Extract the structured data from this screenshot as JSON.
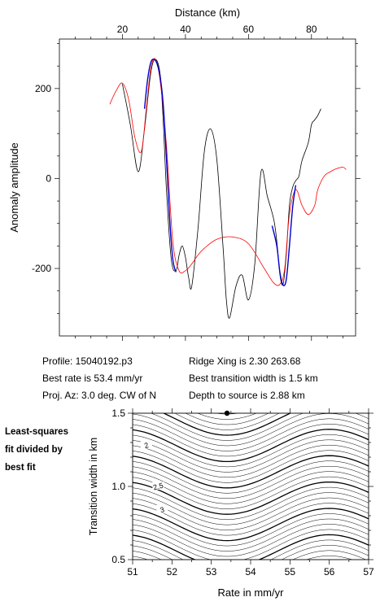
{
  "chart_data": [
    {
      "type": "line",
      "xlabel": "Distance (km)",
      "ylabel": "Anomaly amplitude",
      "xlim": [
        0,
        94
      ],
      "ylim": [
        -350,
        310
      ],
      "xticks": [
        20,
        40,
        60,
        80
      ],
      "yticks": [
        -200,
        0,
        200
      ],
      "x_axis_position": "top",
      "series": [
        {
          "color": "#000000",
          "x": [
            20,
            22.5,
            25,
            27,
            29,
            30.5,
            32,
            33,
            34,
            35.5,
            37,
            38,
            39,
            40,
            41,
            42,
            44,
            46,
            48,
            50,
            52,
            53,
            54,
            56,
            58,
            60,
            62,
            64,
            66,
            68,
            69,
            70,
            71,
            72,
            73,
            74,
            75,
            76,
            77,
            79,
            80,
            81,
            82,
            83
          ],
          "y": [
            210,
            120,
            15,
            110,
            235,
            265,
            230,
            120,
            -30,
            -180,
            -205,
            -170,
            -150,
            -175,
            -220,
            -240,
            -110,
            60,
            110,
            40,
            -160,
            -270,
            -310,
            -240,
            -215,
            -270,
            -190,
            15,
            -40,
            -90,
            -140,
            -215,
            -235,
            -170,
            -60,
            -20,
            -5,
            5,
            40,
            80,
            120,
            130,
            140,
            155
          ]
        },
        {
          "color": "#ff0000",
          "x": [
            16,
            18,
            20,
            22,
            24,
            26,
            27.5,
            29,
            30.5,
            32,
            34,
            36,
            38,
            40,
            42,
            44,
            46,
            50,
            55,
            60,
            65,
            68,
            70,
            71.5,
            73,
            75,
            77,
            79,
            81,
            82,
            84,
            86,
            88,
            90,
            91
          ],
          "y": [
            165,
            195,
            212,
            175,
            90,
            60,
            150,
            245,
            265,
            215,
            70,
            -140,
            -205,
            -205,
            -190,
            -170,
            -155,
            -135,
            -130,
            -145,
            -200,
            -232,
            -235,
            -200,
            -80,
            -25,
            -60,
            -80,
            -60,
            -25,
            5,
            15,
            22,
            25,
            20
          ]
        },
        {
          "color": "#0000cc",
          "x": [
            27,
            28,
            29,
            30,
            31,
            32,
            33,
            34,
            35,
            36,
            37
          ],
          "y": [
            155,
            220,
            258,
            265,
            255,
            225,
            160,
            40,
            -90,
            -180,
            -208
          ]
        },
        {
          "color": "#0000cc",
          "x": [
            67.5,
            69,
            70,
            71,
            72,
            73,
            74,
            75
          ],
          "y": [
            -105,
            -150,
            -210,
            -237,
            -225,
            -150,
            -65,
            -15
          ]
        }
      ]
    },
    {
      "type": "contour",
      "xlabel": "Rate in mm/yr",
      "ylabel": "Transition width in km",
      "xlim": [
        51,
        57
      ],
      "ylim": [
        0.5,
        1.5
      ],
      "xticks": [
        51,
        52,
        53,
        54,
        55,
        56,
        57
      ],
      "yticks": [
        0.5,
        1.0,
        1.5
      ],
      "best_fit": {
        "rate": 53.4,
        "width": 1.5
      },
      "contour_labels": [
        "2",
        "2.5",
        "3"
      ]
    }
  ],
  "info": {
    "profile": "Profile: 15040192.p3",
    "best_rate": "Best rate is 53.4 mm/yr",
    "proj_az": "Proj. Az: 3.0 deg. CW of N",
    "ridge_xing": "Ridge Xing is 2.30 263.68",
    "best_width": "Best transition width is 1.5 km",
    "depth": "Depth to source is   2.88 km"
  },
  "side_note": [
    "Least-squares",
    "fit divided by",
    "best fit"
  ]
}
